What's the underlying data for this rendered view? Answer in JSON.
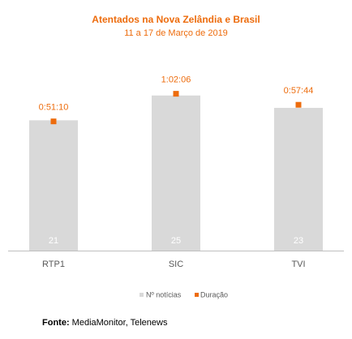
{
  "chart_data": {
    "type": "bar",
    "title": "Atentados na Nova Zelândia e Brasil",
    "subtitle": "11 a 17 de Março de 2019",
    "categories": [
      "RTP1",
      "SIC",
      "TVI"
    ],
    "series": [
      {
        "name": "Nº notícias",
        "kind": "bar",
        "values": [
          21,
          25,
          23
        ],
        "value_labels": [
          "21",
          "25",
          "23"
        ],
        "color": "#D9D9D9"
      },
      {
        "name": "Duração",
        "kind": "marker",
        "values_seconds": [
          3070,
          3726,
          3464
        ],
        "value_labels": [
          "0:51:10",
          "1:02:06",
          "0:57:44"
        ],
        "color": "#ED6C0D"
      }
    ],
    "legend_position": "bottom",
    "grid": false
  },
  "colors": {
    "title": "#ED6C0D",
    "bar": "#D9D9D9",
    "marker": "#ED6C0D",
    "axis": "#BFBFBF",
    "category_text": "#595959",
    "bar_label": "#FFFFFF"
  },
  "source": {
    "label": "Fonte:",
    "text": " MediaMonitor, Telenews"
  }
}
